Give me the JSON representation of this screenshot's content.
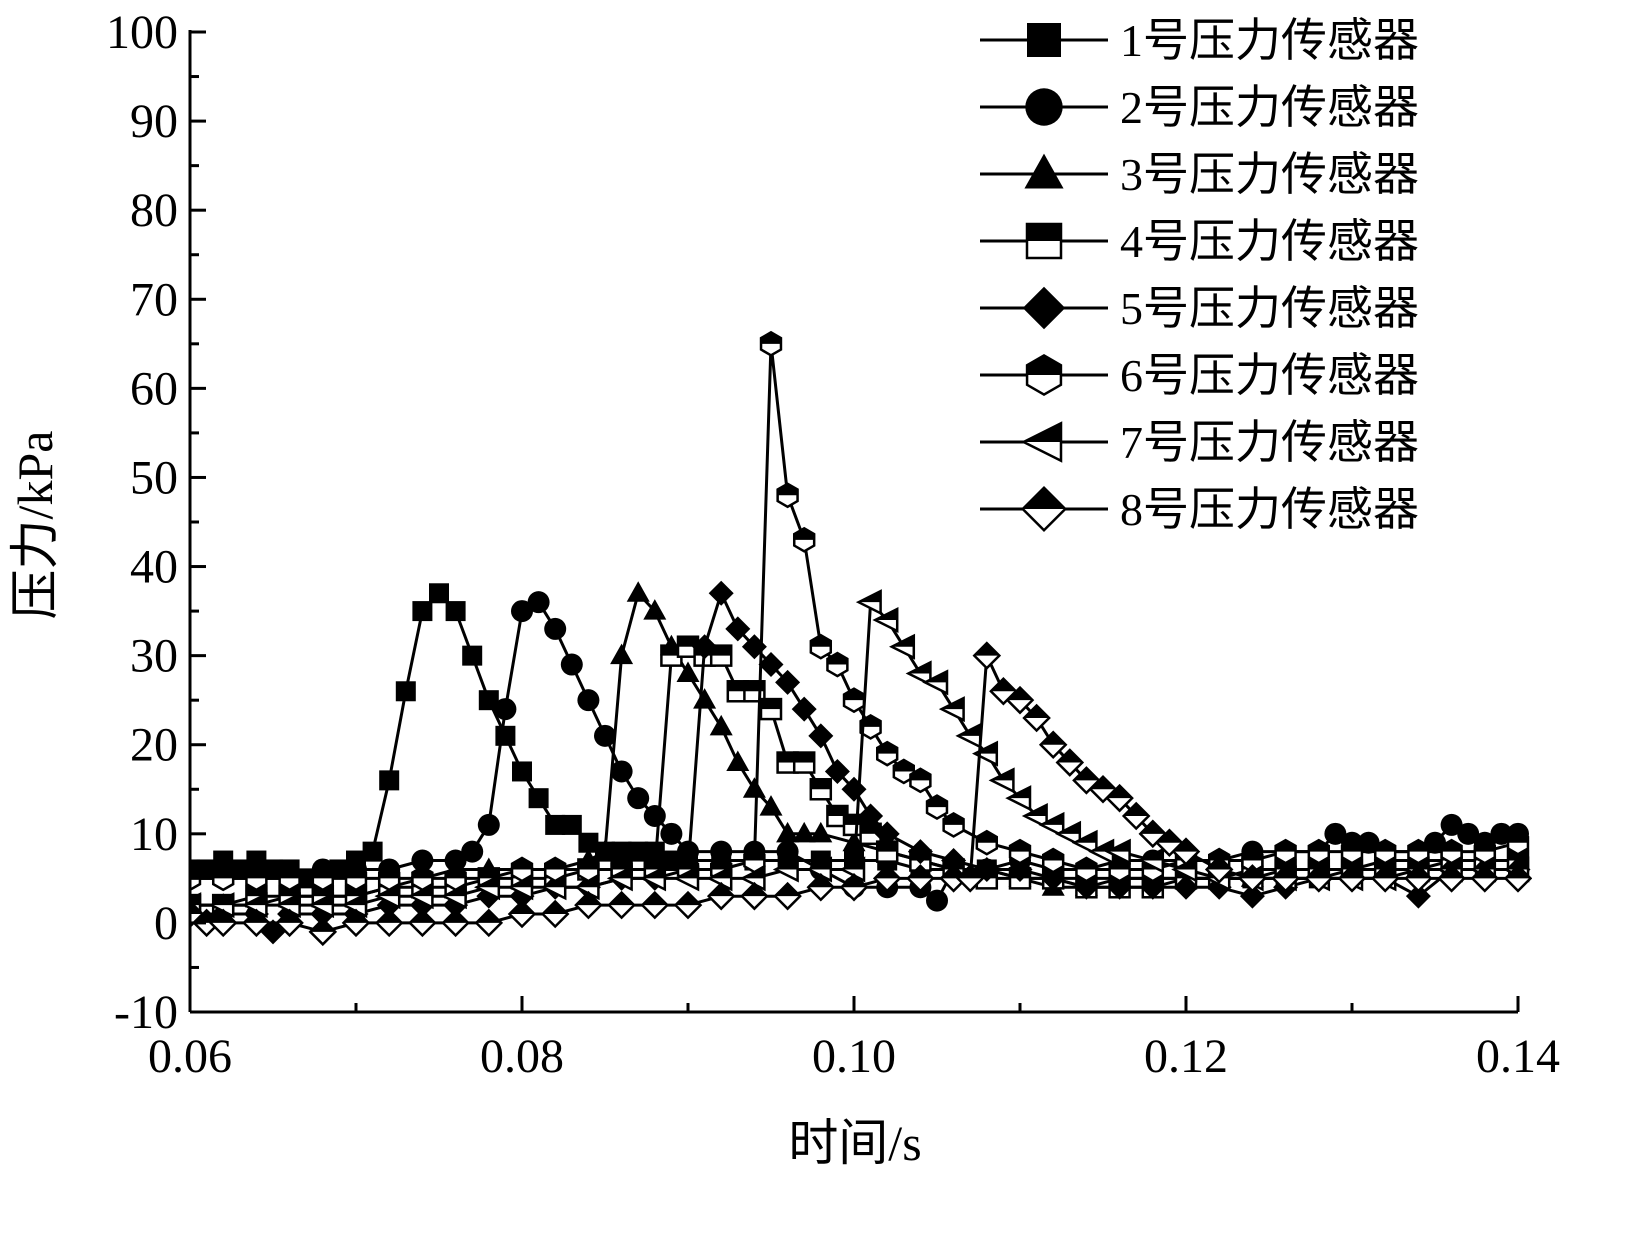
{
  "chart_data": {
    "type": "line",
    "title": "",
    "xlabel": "时间/s",
    "ylabel": "压力/kPa",
    "xlim": [
      0.06,
      0.14
    ],
    "ylim": [
      -10,
      100
    ],
    "x_ticks": [
      "0.06",
      "0.08",
      "0.10",
      "0.12",
      "0.14"
    ],
    "y_ticks": [
      "-10",
      "0",
      "10",
      "20",
      "30",
      "40",
      "50",
      "60",
      "70",
      "80",
      "90",
      "100"
    ],
    "grid": false,
    "legend_position": "top-right",
    "series": [
      {
        "name": "1号压力传感器",
        "marker": "square-filled",
        "x": [
          0.06,
          0.061,
          0.062,
          0.063,
          0.064,
          0.065,
          0.066,
          0.067,
          0.068,
          0.069,
          0.07,
          0.071,
          0.072,
          0.073,
          0.074,
          0.075,
          0.076,
          0.077,
          0.078,
          0.079,
          0.08,
          0.081,
          0.082,
          0.083,
          0.084,
          0.085,
          0.086,
          0.087,
          0.088,
          0.089,
          0.09,
          0.092,
          0.094,
          0.096,
          0.098,
          0.1,
          0.102,
          0.104,
          0.106,
          0.108,
          0.11,
          0.112,
          0.114,
          0.116,
          0.118,
          0.12,
          0.122,
          0.124,
          0.126,
          0.128,
          0.13,
          0.132,
          0.134,
          0.136,
          0.138,
          0.14
        ],
        "values": [
          6,
          6,
          7,
          6,
          7,
          6,
          6,
          5,
          5,
          6,
          7,
          8,
          16,
          26,
          35,
          37,
          35,
          30,
          25,
          21,
          17,
          14,
          11,
          11,
          9,
          8,
          8,
          8,
          8,
          7,
          7,
          7,
          7,
          7,
          7,
          7,
          7,
          6,
          6,
          6,
          5,
          5,
          5,
          5,
          5,
          5,
          5,
          5,
          5,
          5,
          6,
          6,
          6,
          6,
          6,
          6
        ]
      },
      {
        "name": "2号压力传感器",
        "marker": "circle-filled",
        "x": [
          0.06,
          0.062,
          0.064,
          0.066,
          0.068,
          0.07,
          0.072,
          0.074,
          0.076,
          0.077,
          0.078,
          0.079,
          0.08,
          0.081,
          0.082,
          0.083,
          0.084,
          0.085,
          0.086,
          0.087,
          0.088,
          0.089,
          0.09,
          0.092,
          0.094,
          0.096,
          0.098,
          0.1,
          0.102,
          0.104,
          0.105,
          0.106,
          0.108,
          0.11,
          0.112,
          0.114,
          0.116,
          0.118,
          0.12,
          0.122,
          0.124,
          0.126,
          0.128,
          0.129,
          0.13,
          0.131,
          0.132,
          0.134,
          0.135,
          0.136,
          0.137,
          0.138,
          0.139,
          0.14
        ],
        "values": [
          5,
          5,
          5,
          5,
          6,
          6,
          6,
          7,
          7,
          8,
          11,
          24,
          35,
          36,
          33,
          29,
          25,
          21,
          17,
          14,
          12,
          10,
          8,
          8,
          8,
          8,
          6,
          4,
          4,
          4,
          2.5,
          6,
          6,
          7,
          6,
          6,
          7,
          7,
          7,
          7,
          8,
          8,
          8,
          10,
          9,
          9,
          8,
          8,
          9,
          11,
          10,
          9,
          10,
          10
        ]
      },
      {
        "name": "3号压力传感器",
        "marker": "triangle-filled",
        "x": [
          0.06,
          0.062,
          0.064,
          0.066,
          0.068,
          0.07,
          0.072,
          0.074,
          0.076,
          0.078,
          0.08,
          0.082,
          0.084,
          0.085,
          0.086,
          0.087,
          0.088,
          0.089,
          0.09,
          0.091,
          0.092,
          0.093,
          0.094,
          0.095,
          0.096,
          0.097,
          0.098,
          0.1,
          0.102,
          0.104,
          0.106,
          0.108,
          0.11,
          0.112,
          0.114,
          0.116,
          0.118,
          0.12,
          0.122,
          0.124,
          0.126,
          0.128,
          0.13,
          0.132,
          0.134,
          0.136,
          0.138,
          0.14
        ],
        "values": [
          2,
          2,
          2,
          3,
          3,
          3,
          4,
          5,
          6,
          6,
          6,
          6,
          7,
          8,
          30,
          37,
          35,
          31,
          28,
          25,
          22,
          18,
          15,
          13,
          10,
          10,
          10,
          9,
          8,
          7,
          6,
          6,
          5,
          4,
          4,
          5,
          5,
          5,
          5,
          5,
          6,
          6,
          6,
          7,
          7,
          7,
          7,
          7
        ]
      },
      {
        "name": "4号压力传感器",
        "marker": "square-open",
        "x": [
          0.06,
          0.062,
          0.064,
          0.066,
          0.068,
          0.07,
          0.072,
          0.074,
          0.076,
          0.078,
          0.08,
          0.082,
          0.084,
          0.086,
          0.088,
          0.089,
          0.09,
          0.091,
          0.092,
          0.093,
          0.094,
          0.095,
          0.096,
          0.097,
          0.098,
          0.099,
          0.1,
          0.101,
          0.102,
          0.104,
          0.106,
          0.108,
          0.11,
          0.112,
          0.114,
          0.116,
          0.118,
          0.12,
          0.122,
          0.124,
          0.126,
          0.128,
          0.13,
          0.132,
          0.134,
          0.136,
          0.138,
          0.14
        ],
        "values": [
          2,
          2,
          3,
          3,
          3,
          3,
          4,
          4,
          4,
          5,
          5,
          5,
          6,
          6,
          6,
          30,
          31,
          30,
          30,
          26,
          26,
          24,
          18,
          18,
          15,
          12,
          11,
          10,
          8,
          7,
          6,
          5,
          5,
          5,
          4,
          4,
          4,
          5,
          5,
          6,
          6,
          6,
          6,
          6,
          6,
          7,
          7,
          7
        ]
      },
      {
        "name": "5号压力传感器",
        "marker": "diamond-filled",
        "x": [
          0.06,
          0.062,
          0.064,
          0.065,
          0.066,
          0.068,
          0.07,
          0.072,
          0.074,
          0.076,
          0.078,
          0.08,
          0.082,
          0.084,
          0.086,
          0.088,
          0.09,
          0.091,
          0.092,
          0.093,
          0.094,
          0.095,
          0.096,
          0.097,
          0.098,
          0.099,
          0.1,
          0.101,
          0.102,
          0.104,
          0.106,
          0.108,
          0.11,
          0.112,
          0.114,
          0.116,
          0.118,
          0.12,
          0.122,
          0.124,
          0.126,
          0.128,
          0.13,
          0.132,
          0.134,
          0.136,
          0.138,
          0.14
        ],
        "values": [
          1,
          1,
          1,
          -1,
          1,
          1,
          1,
          2,
          2,
          2,
          3,
          3,
          4,
          4,
          5,
          5,
          6,
          31,
          37,
          33,
          31,
          29,
          27,
          24,
          21,
          17,
          15,
          12,
          10,
          8,
          7,
          6,
          6,
          5,
          4,
          4,
          4,
          4,
          4,
          3,
          4,
          5,
          5,
          5,
          3,
          6,
          6,
          6
        ]
      },
      {
        "name": "6号压力传感器",
        "marker": "hexagon-half",
        "x": [
          0.06,
          0.062,
          0.064,
          0.066,
          0.068,
          0.07,
          0.072,
          0.074,
          0.076,
          0.078,
          0.08,
          0.082,
          0.084,
          0.086,
          0.088,
          0.09,
          0.092,
          0.094,
          0.095,
          0.096,
          0.097,
          0.098,
          0.099,
          0.1,
          0.101,
          0.102,
          0.103,
          0.104,
          0.105,
          0.106,
          0.108,
          0.11,
          0.112,
          0.114,
          0.116,
          0.118,
          0.12,
          0.122,
          0.124,
          0.126,
          0.128,
          0.13,
          0.132,
          0.134,
          0.136,
          0.138,
          0.14
        ],
        "values": [
          5,
          5,
          5,
          5,
          5,
          5,
          5,
          5,
          5,
          5,
          6,
          6,
          6,
          6,
          6,
          6,
          6,
          7,
          65,
          48,
          43,
          31,
          29,
          25,
          22,
          19,
          17,
          16,
          13,
          11,
          9,
          8,
          7,
          6,
          6,
          6,
          7,
          7,
          7,
          8,
          8,
          8,
          8,
          8,
          8,
          8,
          9
        ]
      },
      {
        "name": "7号压力传感器",
        "marker": "triangle-left-open",
        "x": [
          0.06,
          0.062,
          0.064,
          0.066,
          0.068,
          0.07,
          0.072,
          0.074,
          0.076,
          0.078,
          0.08,
          0.082,
          0.084,
          0.086,
          0.088,
          0.09,
          0.092,
          0.094,
          0.096,
          0.098,
          0.1,
          0.101,
          0.102,
          0.103,
          0.104,
          0.105,
          0.106,
          0.107,
          0.108,
          0.109,
          0.11,
          0.111,
          0.112,
          0.113,
          0.114,
          0.115,
          0.116,
          0.118,
          0.12,
          0.122,
          0.124,
          0.126,
          0.128,
          0.13,
          0.132,
          0.134,
          0.136,
          0.138,
          0.14
        ],
        "values": [
          2,
          2,
          2,
          2,
          2,
          2,
          3,
          3,
          3,
          4,
          4,
          4,
          4,
          5,
          5,
          5,
          5,
          5,
          6,
          6,
          6,
          36,
          34,
          31,
          28,
          27,
          24,
          21,
          19,
          16,
          14,
          12,
          11,
          10,
          9,
          8,
          8,
          7,
          6,
          5,
          5,
          5,
          5,
          5,
          5,
          6,
          6,
          6,
          6
        ]
      },
      {
        "name": "8号压力传感器",
        "marker": "diamond-half",
        "x": [
          0.06,
          0.061,
          0.062,
          0.064,
          0.066,
          0.068,
          0.07,
          0.072,
          0.074,
          0.076,
          0.078,
          0.08,
          0.082,
          0.084,
          0.086,
          0.088,
          0.09,
          0.092,
          0.094,
          0.096,
          0.098,
          0.1,
          0.102,
          0.104,
          0.106,
          0.107,
          0.108,
          0.109,
          0.11,
          0.111,
          0.112,
          0.113,
          0.114,
          0.115,
          0.116,
          0.117,
          0.118,
          0.119,
          0.12,
          0.122,
          0.124,
          0.126,
          0.128,
          0.13,
          0.132,
          0.134,
          0.136,
          0.138,
          0.14
        ],
        "values": [
          1,
          0,
          0,
          0,
          0,
          -1,
          0,
          0,
          0,
          0,
          0,
          1,
          1,
          2,
          2,
          2,
          2,
          3,
          3,
          3,
          4,
          4,
          5,
          5,
          5,
          5,
          30,
          26,
          25,
          23,
          20,
          18,
          16,
          15,
          14,
          12,
          10,
          9,
          8,
          6,
          5,
          5,
          5,
          5,
          5,
          5,
          5,
          5,
          5
        ]
      }
    ]
  }
}
